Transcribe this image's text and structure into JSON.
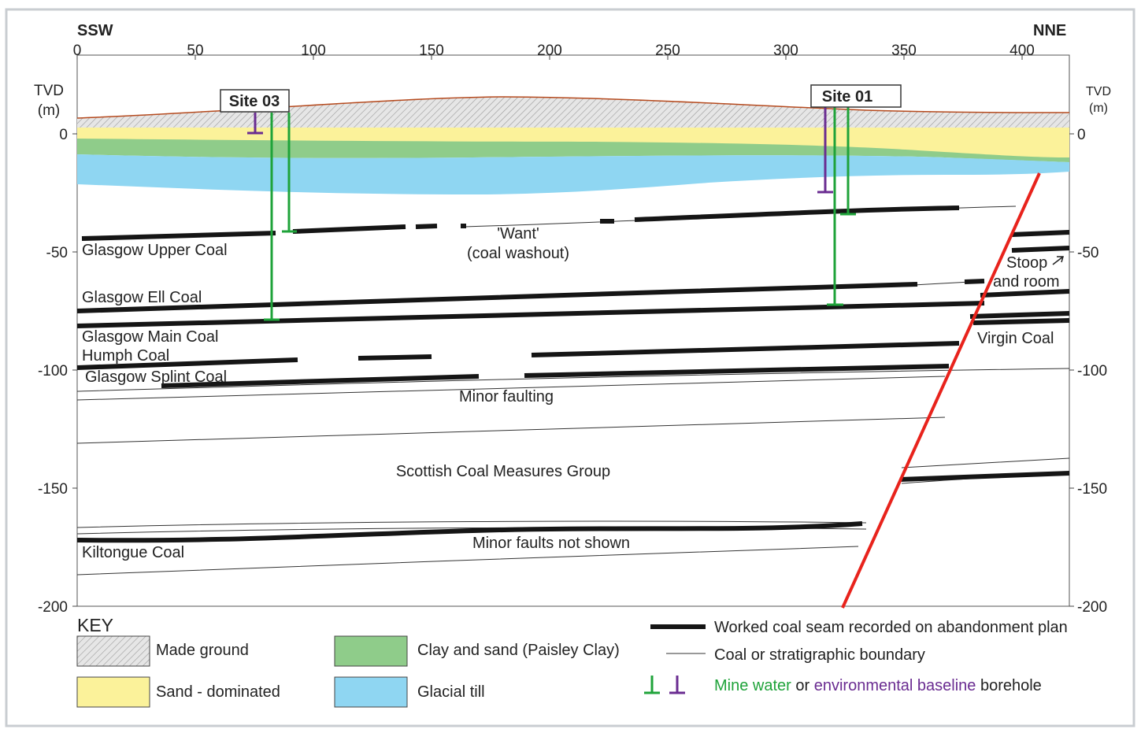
{
  "section": {
    "direction_left": "SSW",
    "direction_right": "NNE",
    "x_ticks": [
      "0",
      "50",
      "100",
      "150",
      "200",
      "250",
      "300",
      "350",
      "400"
    ],
    "y_axis_title_left_1": "TVD",
    "y_axis_title_left_2": "(m)",
    "y_axis_title_right_1": "TVD",
    "y_axis_title_right_2": "(m)",
    "y_ticks_left": [
      "0",
      "-50",
      "-100",
      "-150",
      "-200"
    ],
    "y_ticks_right": [
      "0",
      "-50",
      "-100",
      "-150",
      "-200"
    ]
  },
  "sites": {
    "site03": "Site 03",
    "site01": "Site 01"
  },
  "seams": {
    "glasgow_upper": "Glasgow Upper Coal",
    "want_1": "'Want'",
    "want_2": "(coal washout)",
    "glasgow_ell": "Glasgow Ell Coal",
    "glasgow_main": "Glasgow Main Coal",
    "humph": "Humph Coal",
    "glasgow_splint": "Glasgow Splint Coal",
    "minor_faulting": "Minor faulting",
    "scottish_coal": "Scottish Coal Measures Group",
    "kiltongue": "Kiltongue Coal",
    "minor_faults_not_shown": "Minor faults not shown",
    "stoop_1": "Stoop",
    "stoop_2": "and room",
    "virgin_coal": "Virgin Coal"
  },
  "key": {
    "title": "KEY",
    "made_ground": "Made ground",
    "sand_dominated": "Sand - dominated",
    "clay_sand": "Clay and sand (Paisley Clay)",
    "glacial_till": "Glacial till",
    "worked_seam": "Worked coal seam recorded on abandonment plan",
    "boundary": "Coal or stratigraphic boundary",
    "mine_water": "Mine water",
    "or_text": " or ",
    "env_baseline": "environmental baseline",
    "borehole": " borehole"
  },
  "colors": {
    "made_ground": "#d9d9d9",
    "sand": "#fbf29a",
    "clay": "#8fcc8a",
    "till": "#8fd6f2",
    "fault": "#e8231c",
    "mine_water": "#1fa33a",
    "baseline": "#6a2c91",
    "surface": "#b54a1e"
  }
}
